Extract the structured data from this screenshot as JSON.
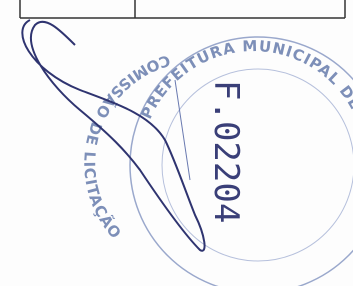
{
  "stamp": {
    "top_text": "PREFEITURA MUNICIPAL DE",
    "side_text": "COMISSÃO DE LICITAÇÃO"
  },
  "page_number": "F.02204"
}
